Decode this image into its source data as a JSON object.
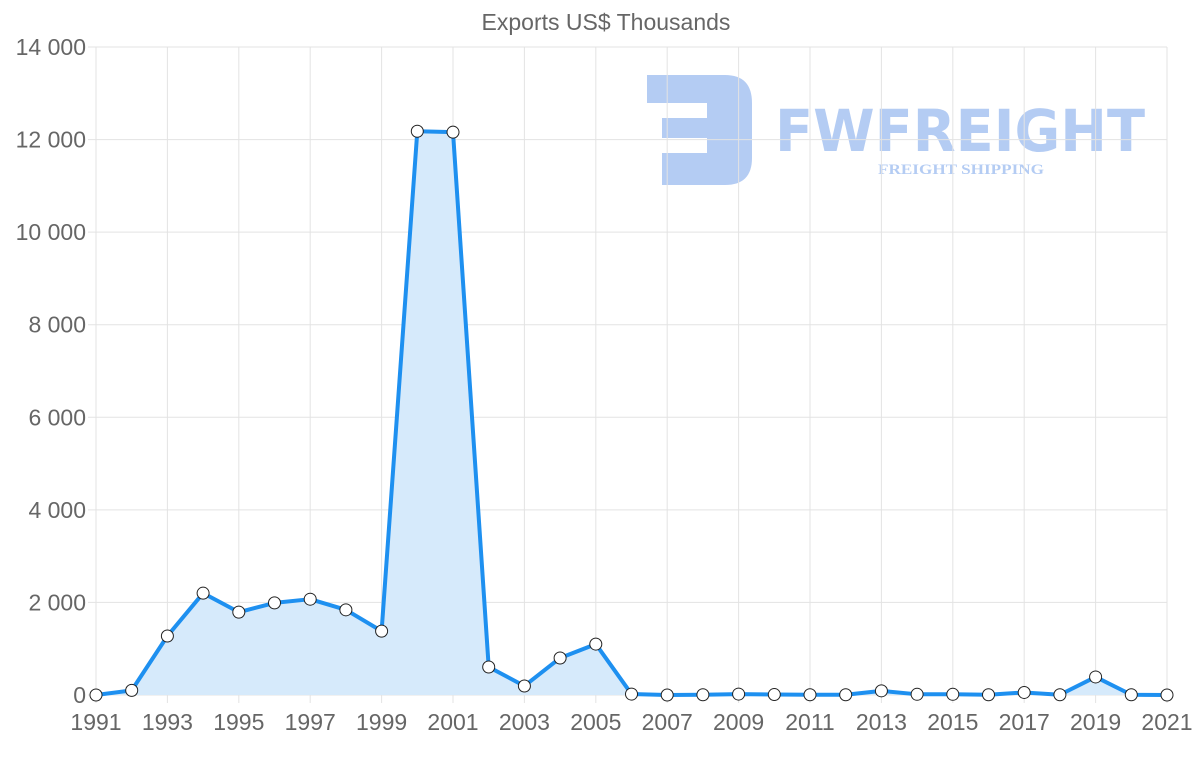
{
  "chart_data": {
    "type": "line",
    "title": "Exports US$ Thousands",
    "xlabel": "",
    "ylabel": "",
    "x": [
      1991,
      1992,
      1993,
      1994,
      1995,
      1996,
      1997,
      1998,
      1999,
      2000,
      2001,
      2002,
      2003,
      2004,
      2005,
      2006,
      2007,
      2008,
      2009,
      2010,
      2011,
      2012,
      2013,
      2014,
      2015,
      2016,
      2017,
      2018,
      2019,
      2020,
      2021
    ],
    "series": [
      {
        "name": "Exports US$ Thousands",
        "values": [
          0,
          100,
          1275,
          2200,
          1790,
          1990,
          2070,
          1840,
          1380,
          12180,
          12160,
          605,
          195,
          800,
          1100,
          20,
          0,
          5,
          20,
          10,
          5,
          5,
          90,
          15,
          15,
          5,
          55,
          5,
          390,
          5,
          0
        ],
        "color": "#1e90f0",
        "fill": "#d6eafb"
      }
    ],
    "ylim": [
      0,
      14000
    ],
    "yticks": [
      "0",
      "2 000",
      "4 000",
      "6 000",
      "8 000",
      "10 000",
      "12 000",
      "14 000"
    ],
    "xticks": [
      "1991",
      "1993",
      "1995",
      "1997",
      "1999",
      "2001",
      "2003",
      "2005",
      "2007",
      "2009",
      "2011",
      "2013",
      "2015",
      "2017",
      "2019",
      "2021"
    ],
    "grid": true,
    "legend": "none"
  },
  "watermark": {
    "brand": "FWFREIGHT",
    "tagline": "FREIGHT SHIPPING",
    "color": "#5b8fe6"
  }
}
